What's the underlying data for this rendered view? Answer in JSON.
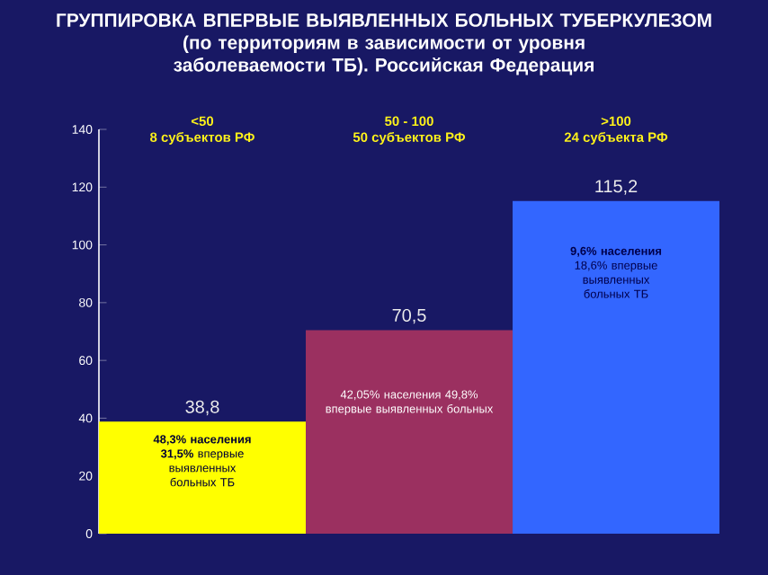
{
  "chart_data": {
    "type": "bar",
    "title": "ГРУППИРОВКА ВПЕРВЫЕ ВЫЯВЛЕННЫХ БОЛЬНЫХ ТУБЕРКУЛЕЗОМ",
    "subtitle": "(по территориям в зависимости от уровня заболеваемости ТБ). Российская Федерация",
    "categories": [
      "<50",
      "50 - 100",
      ">100"
    ],
    "values": [
      38.8,
      70.5,
      115.2
    ],
    "colors": [
      "#ffff00",
      "#9b3060",
      "#3366ff"
    ],
    "value_labels": [
      "38,8",
      "70,5",
      "115,2"
    ],
    "ylim": [
      0,
      140
    ],
    "yticks": [
      0,
      20,
      40,
      60,
      80,
      100,
      120,
      140
    ],
    "annotations": [
      "8 субъектов РФ",
      "50 субъектов РФ",
      "24 субъекта РФ",
      "**48,3% населения** **31,5%** впервые выявленных больных ТБ",
      "42,05% населения 49,8% впервые выявленных больных",
      "**9,6% населения** 18,6% впервые выявленных больных ТБ"
    ],
    "grid": false
  }
}
